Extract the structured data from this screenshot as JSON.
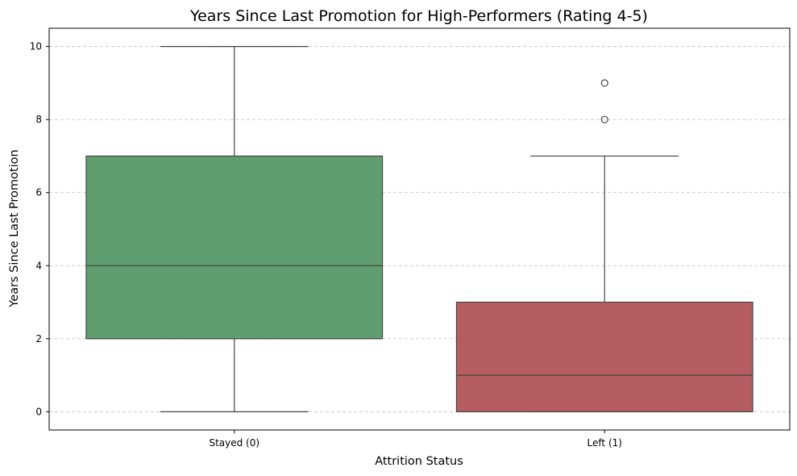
{
  "chart_data": {
    "type": "box",
    "title": "Years Since Last Promotion for High-Performers (Rating 4-5)",
    "xlabel": "Attrition Status",
    "ylabel": "Years Since Last Promotion",
    "ylim": [
      -0.5,
      10.5
    ],
    "yticks": [
      0,
      2,
      4,
      6,
      8,
      10
    ],
    "grid": "y-dashed",
    "categories": [
      "Stayed (0)",
      "Left (1)"
    ],
    "boxes": [
      {
        "category": "Stayed (0)",
        "color": "#5f9e6e",
        "min": 0,
        "q1": 2,
        "median": 4,
        "q3": 7,
        "max": 10,
        "outliers": []
      },
      {
        "category": "Left (1)",
        "color": "#b55d60",
        "min": 0,
        "q1": 0,
        "median": 1,
        "q3": 3,
        "max": 7,
        "outliers": [
          8,
          9
        ]
      }
    ]
  }
}
